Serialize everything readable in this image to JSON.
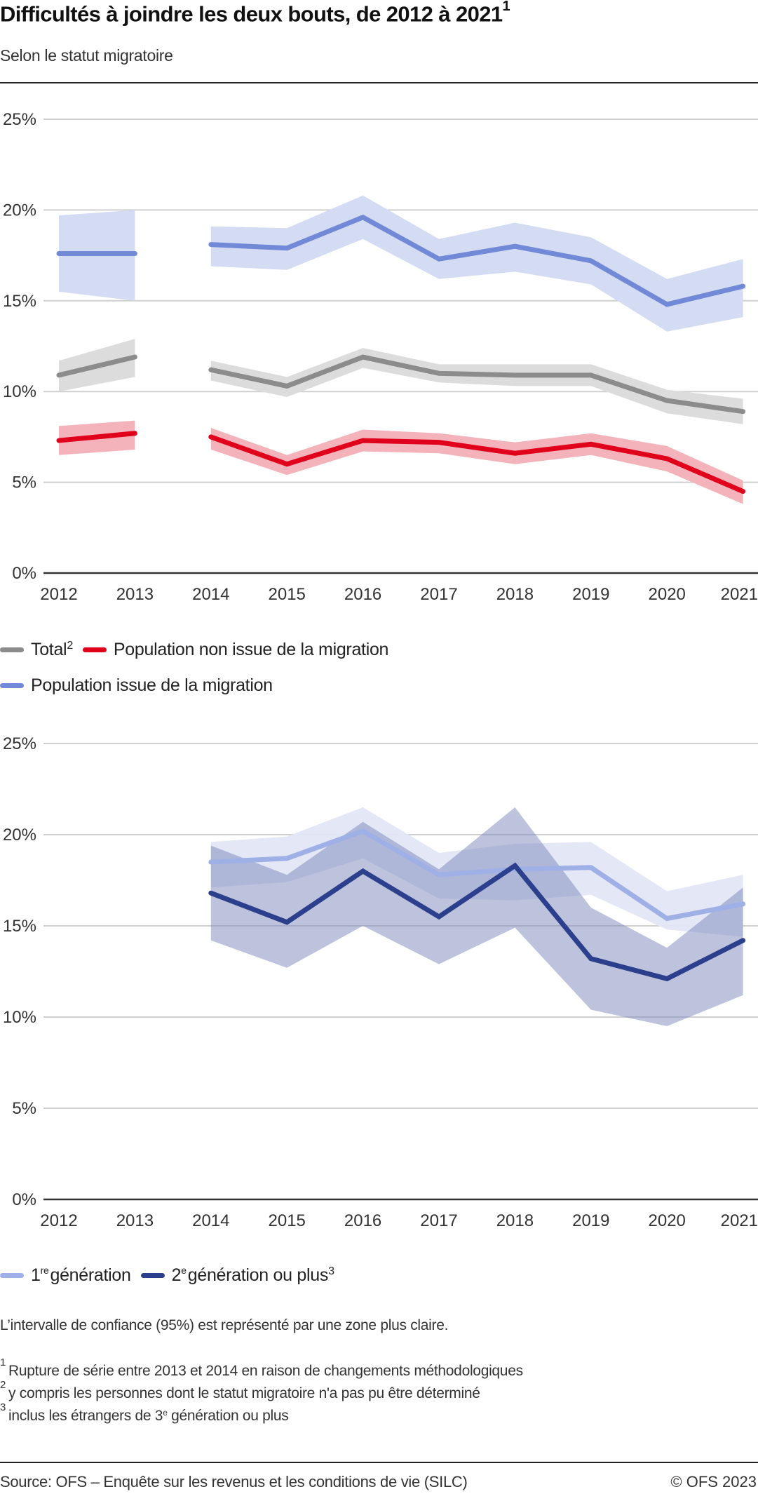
{
  "header": {
    "title": "Difficultés à joindre les deux bouts, de 2012 à 2021",
    "title_footnote": "1",
    "subtitle": "Selon le statut migratoire"
  },
  "colors": {
    "total": "#8c8c8c",
    "total_ci": "#dcdcdc",
    "non_migration": "#e0001b",
    "non_migration_ci": "#f4b3bb",
    "migration": "#7189d6",
    "migration_ci": "#d4dcf3",
    "gen1": "#9fb0e6",
    "gen1_ci": "#e1e6f6",
    "gen2": "#2b3f8c",
    "gen2_ci": "#7b87bb",
    "grid": "#d0d0d0",
    "axis": "#333333"
  },
  "chart_data": [
    {
      "type": "line",
      "title": "Difficultés à joindre les deux bouts — selon le statut migratoire",
      "xlabel": "",
      "ylabel": "",
      "x": [
        "2012",
        "2013",
        "2014",
        "2015",
        "2016",
        "2017",
        "2018",
        "2019",
        "2020",
        "2021"
      ],
      "yticks": [
        "0%",
        "5%",
        "10%",
        "15%",
        "20%",
        "25%"
      ],
      "ylim": [
        0,
        25
      ],
      "grid": true,
      "series_break_between": [
        "2013",
        "2014"
      ],
      "series": [
        {
          "key": "migration",
          "name": "Population issue de la migration",
          "values": [
            17.6,
            17.6,
            18.1,
            17.9,
            19.6,
            17.3,
            18.0,
            17.2,
            14.8,
            15.8
          ],
          "ci_upper": [
            19.7,
            20.0,
            19.1,
            19.0,
            20.8,
            18.4,
            19.3,
            18.5,
            16.2,
            17.3
          ],
          "ci_lower": [
            15.5,
            15.0,
            16.9,
            16.7,
            18.4,
            16.2,
            16.6,
            15.9,
            13.3,
            14.1
          ]
        },
        {
          "key": "total",
          "name": "Total",
          "footnote": "2",
          "values": [
            10.9,
            11.9,
            11.2,
            10.3,
            11.9,
            11.0,
            10.9,
            10.9,
            9.5,
            8.9
          ],
          "ci_upper": [
            11.7,
            12.9,
            11.7,
            10.8,
            12.4,
            11.5,
            11.5,
            11.5,
            10.1,
            9.6
          ],
          "ci_lower": [
            10.0,
            10.8,
            10.6,
            9.7,
            11.3,
            10.5,
            10.3,
            10.3,
            8.8,
            8.2
          ]
        },
        {
          "key": "non_migration",
          "name": "Population non issue de la migration",
          "values": [
            7.3,
            7.7,
            7.5,
            6.0,
            7.3,
            7.2,
            6.6,
            7.1,
            6.3,
            4.5
          ],
          "ci_upper": [
            8.1,
            8.4,
            8.0,
            6.5,
            7.9,
            7.7,
            7.2,
            7.7,
            7.0,
            5.1
          ],
          "ci_lower": [
            6.5,
            6.8,
            6.8,
            5.4,
            6.7,
            6.6,
            6.0,
            6.5,
            5.6,
            3.8
          ]
        }
      ],
      "legend": [
        {
          "key": "total",
          "label": "Total",
          "sup": "2"
        },
        {
          "key": "non_migration",
          "label": "Population non issue de la migration",
          "sup": ""
        },
        {
          "key": "migration",
          "label": "Population issue de la migration",
          "sup": ""
        }
      ],
      "legend_position": "bottom-left"
    },
    {
      "type": "line",
      "title": "Difficultés à joindre les deux bouts — selon la génération",
      "xlabel": "",
      "ylabel": "",
      "x": [
        "2012",
        "2013",
        "2014",
        "2015",
        "2016",
        "2017",
        "2018",
        "2019",
        "2020",
        "2021"
      ],
      "yticks": [
        "0%",
        "5%",
        "10%",
        "15%",
        "20%",
        "25%"
      ],
      "ylim": [
        0,
        25
      ],
      "grid": true,
      "series": [
        {
          "key": "gen1",
          "name": "1re génération",
          "values": [
            null,
            null,
            18.5,
            18.7,
            20.2,
            17.8,
            18.1,
            18.2,
            15.4,
            16.2
          ],
          "ci_upper": [
            null,
            null,
            19.6,
            19.9,
            21.5,
            19.0,
            19.5,
            19.6,
            16.9,
            17.8
          ],
          "ci_lower": [
            null,
            null,
            17.1,
            17.4,
            18.7,
            16.5,
            16.4,
            16.7,
            14.8,
            14.4
          ]
        },
        {
          "key": "gen2",
          "name": "2e génération ou plus",
          "footnote": "3",
          "values": [
            null,
            null,
            16.8,
            15.2,
            18.0,
            15.5,
            18.3,
            13.2,
            12.1,
            14.2
          ],
          "ci_upper": [
            null,
            null,
            19.4,
            17.8,
            20.7,
            18.1,
            21.5,
            16.0,
            13.8,
            17.1
          ],
          "ci_lower": [
            null,
            null,
            14.2,
            12.7,
            15.0,
            12.9,
            14.9,
            10.4,
            9.5,
            11.2
          ]
        }
      ],
      "legend": [
        {
          "key": "gen1",
          "label_num": "1",
          "label_sup": "re",
          "label": " génération",
          "sup": ""
        },
        {
          "key": "gen2",
          "label_num": "2",
          "label_sup": "e",
          "label": " génération ou plus",
          "sup": "3"
        }
      ],
      "legend_position": "bottom-left"
    }
  ],
  "notes": {
    "ci_note": "L’intervalle de confiance (95%) est représenté par une zone plus claire.",
    "footnotes": [
      {
        "num": "1",
        "text": "Rupture de série entre 2013 et 2014 en raison de changements méthodologiques"
      },
      {
        "num": "2",
        "text": "y compris les personnes dont le statut migratoire n'a pas pu être déterminé"
      },
      {
        "num": "3",
        "pre": "inclus les étrangers de 3",
        "sup": "e",
        "post": " génération ou plus"
      }
    ]
  },
  "footer": {
    "source": "Source: OFS – Enquête sur les revenus et les conditions de vie (SILC)",
    "copyright": "© OFS 2023"
  }
}
